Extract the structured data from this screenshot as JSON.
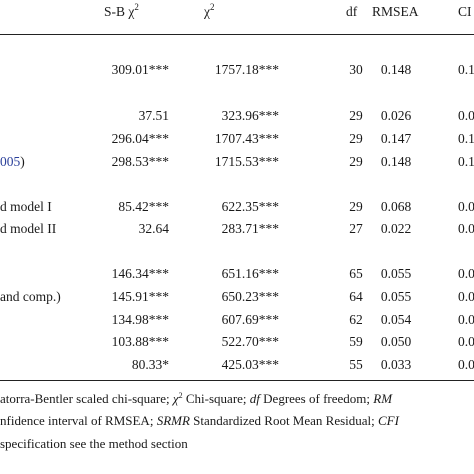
{
  "headers": {
    "sb": "S-B χ",
    "sb_sup": "2",
    "chi": "χ",
    "chi_sup": "2",
    "df": "df",
    "rmsea": "RMSEA",
    "ci": "CI"
  },
  "rows": [
    {
      "label": "",
      "label_pre": "",
      "sb": "309.01***",
      "chi": "1757.18***",
      "df": "30",
      "rmsea": "0.148",
      "ci": "0.1"
    },
    {
      "label": "",
      "label_pre": "",
      "sb": "37.51",
      "chi": "323.96***",
      "df": "29",
      "rmsea": "0.026",
      "ci": "0.0"
    },
    {
      "label": "",
      "label_pre": "",
      "sb": "296.04***",
      "chi": "1707.43***",
      "df": "29",
      "rmsea": "0.147",
      "ci": "0.1"
    },
    {
      "label": ")",
      "label_pre": "005",
      "sb": "298.53***",
      "chi": "1715.53***",
      "df": "29",
      "rmsea": "0.148",
      "ci": "0.1"
    },
    {
      "label": "d model I",
      "label_pre": "",
      "sb": "85.42***",
      "chi": "622.35***",
      "df": "29",
      "rmsea": "0.068",
      "ci": "0.0"
    },
    {
      "label": "d model II",
      "label_pre": "",
      "sb": "32.64",
      "chi": "283.71***",
      "df": "27",
      "rmsea": "0.022",
      "ci": "0.0"
    },
    {
      "label": "",
      "label_pre": "",
      "sb": "146.34***",
      "chi": "651.16***",
      "df": "65",
      "rmsea": "0.055",
      "ci": "0.0"
    },
    {
      "label": "and comp.)",
      "label_pre": "",
      "sb": "145.91***",
      "chi": "650.23***",
      "df": "64",
      "rmsea": "0.055",
      "ci": "0.0"
    },
    {
      "label": "",
      "label_pre": "",
      "sb": "134.98***",
      "chi": "607.69***",
      "df": "62",
      "rmsea": "0.054",
      "ci": "0.0"
    },
    {
      "label": "",
      "label_pre": "",
      "sb": "103.88***",
      "chi": "522.70***",
      "df": "59",
      "rmsea": "0.050",
      "ci": "0.0"
    },
    {
      "label": "",
      "label_pre": "",
      "sb": "80.33*",
      "chi": "425.03***",
      "df": "55",
      "rmsea": "0.033",
      "ci": "0.0"
    }
  ],
  "footnotes": {
    "line1_a": "atorra-Bentler scaled chi-square; ",
    "line1_chi": "χ",
    "line1_sup": "2",
    "line1_b": " Chi-square; ",
    "line1_df": "df",
    "line1_c": " Degrees of freedom; ",
    "line1_rm": "RM",
    "line2_a": "nfidence interval of RMSEA; ",
    "line2_srmr": "SRMR",
    "line2_b": " Standardized Root Mean Residual; ",
    "line2_cfi": "CFI",
    "line3": " specification see the method section"
  }
}
